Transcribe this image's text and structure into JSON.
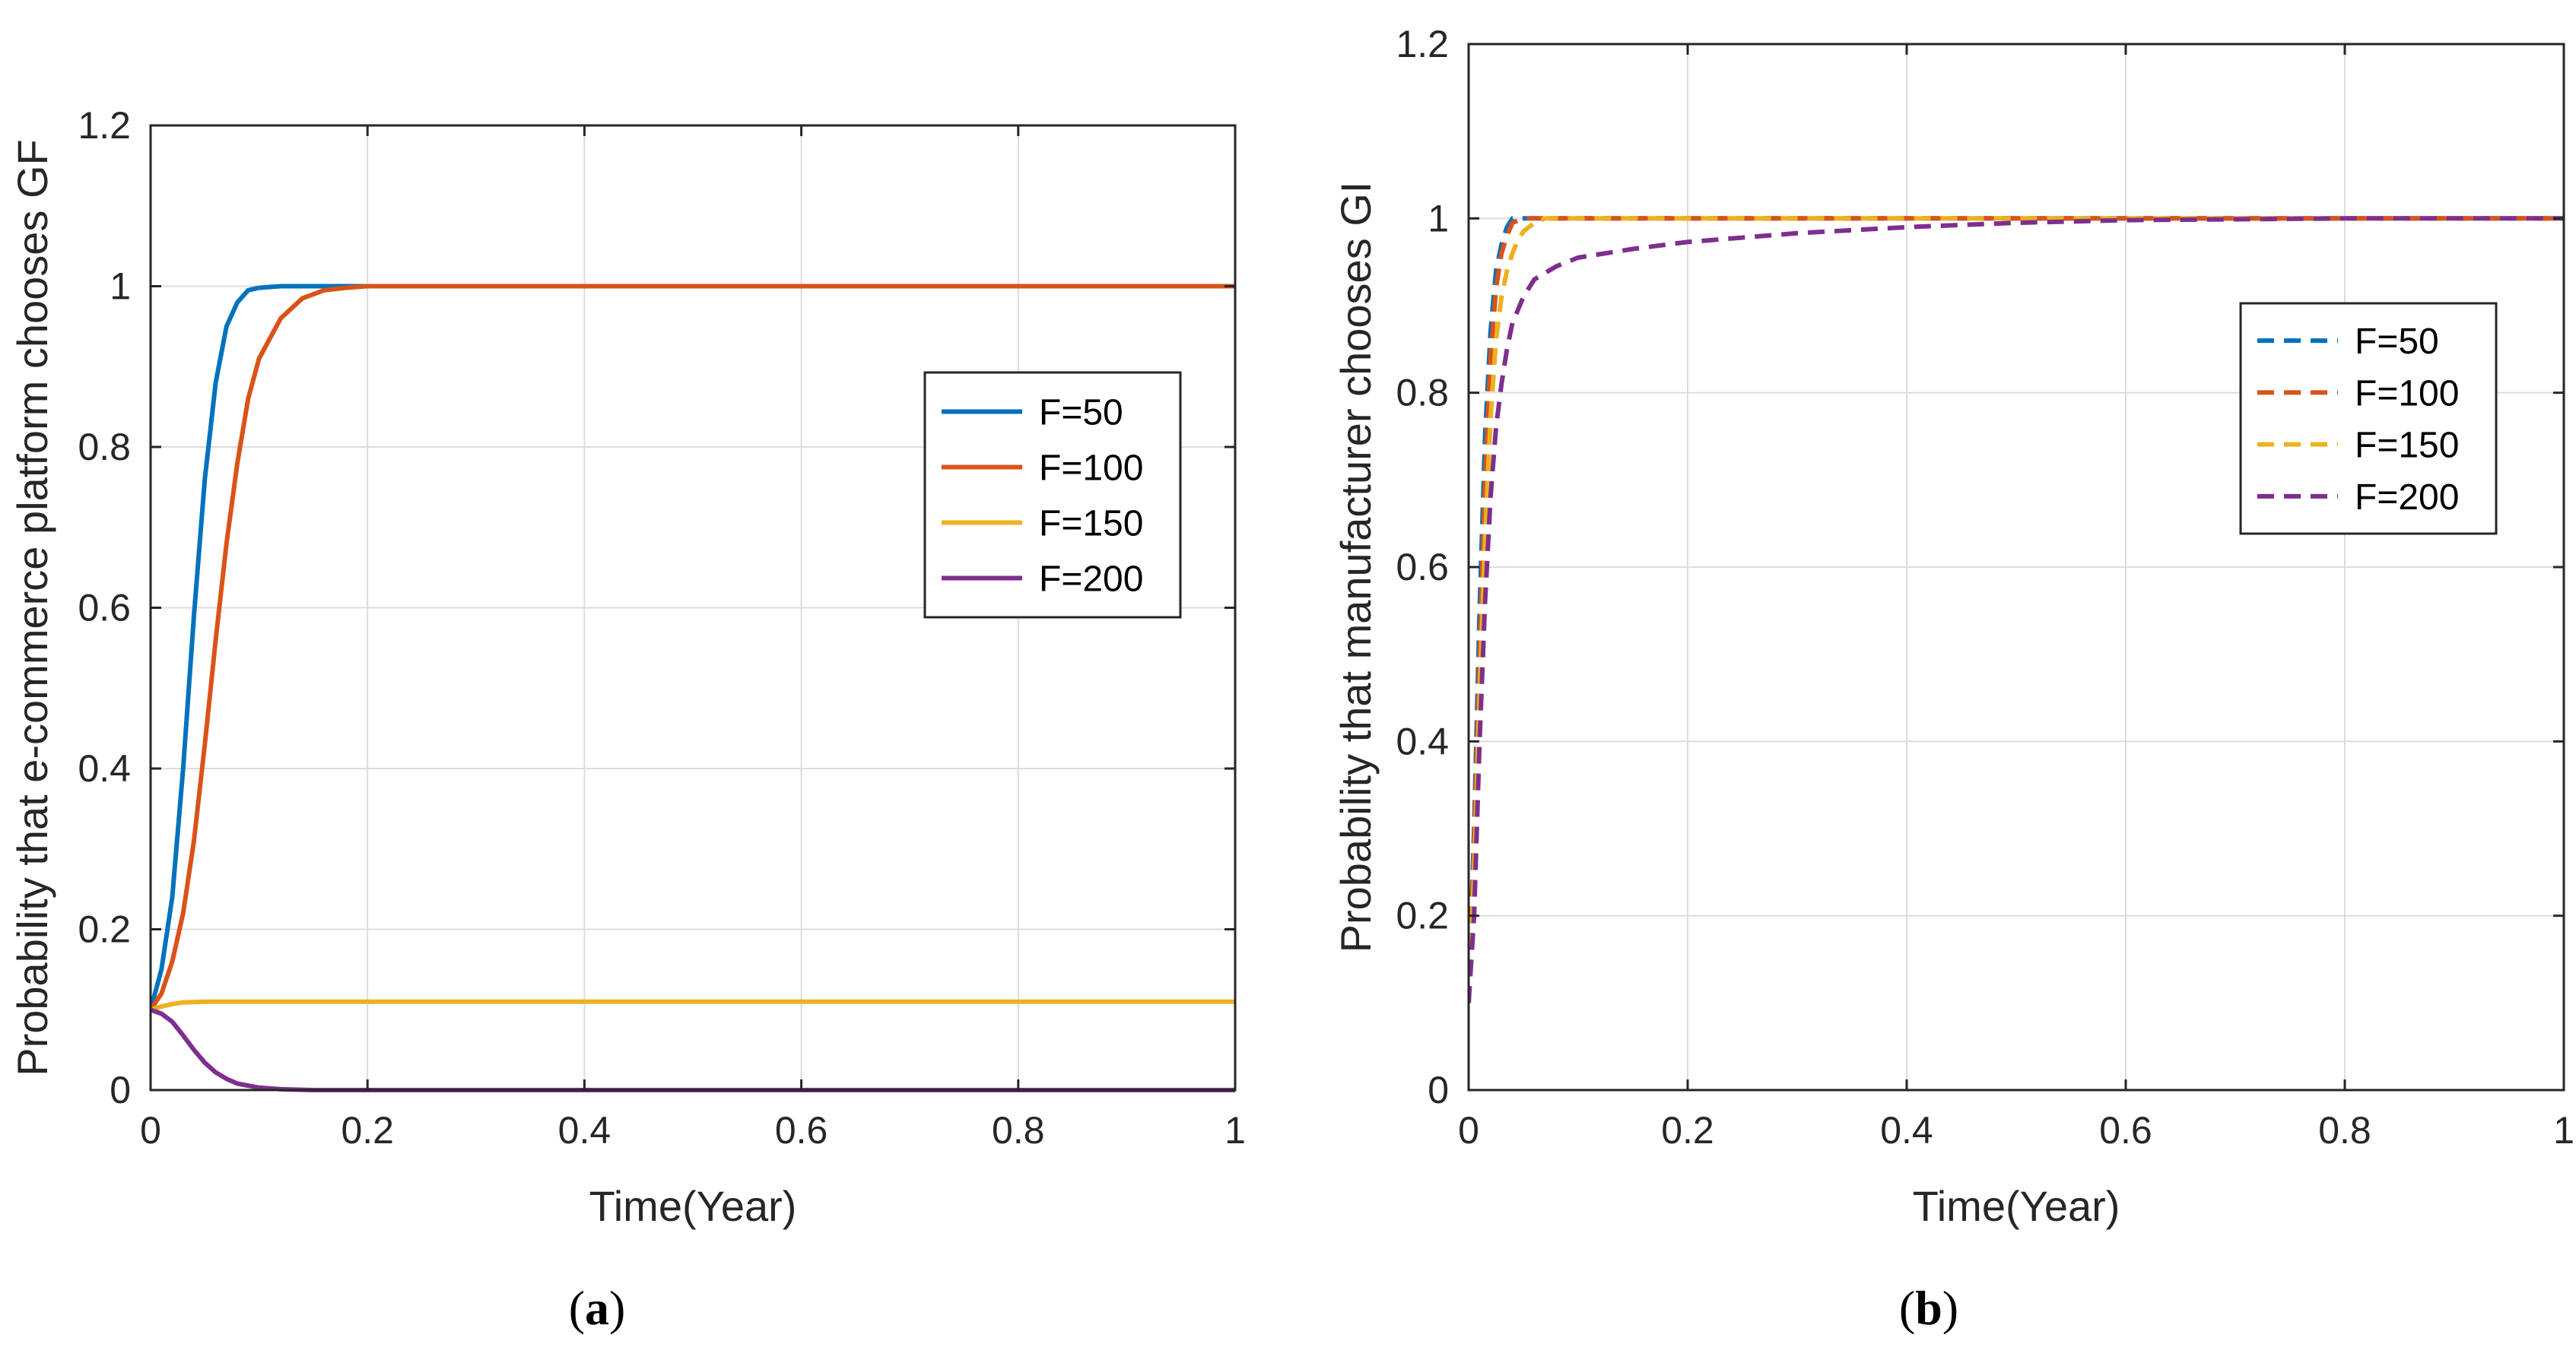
{
  "chart_data": [
    {
      "type": "line",
      "panel_label": "(a)",
      "title": "",
      "xlabel": "Time(Year)",
      "ylabel": "Probability that e-commerce platform chooses GF",
      "xlim": [
        0,
        1
      ],
      "ylim": [
        0,
        1.2
      ],
      "xticks": [
        0,
        0.2,
        0.4,
        0.6,
        0.8,
        1
      ],
      "xtick_labels": [
        "0",
        "0.2",
        "0.4",
        "0.6",
        "0.8",
        "1"
      ],
      "yticks": [
        0,
        0.2,
        0.4,
        0.6,
        0.8,
        1,
        1.2
      ],
      "ytick_labels": [
        "0",
        "0.2",
        "0.4",
        "0.6",
        "0.8",
        "1",
        "1.2"
      ],
      "grid": true,
      "legend_position": "center-right",
      "line_style": "solid",
      "series": [
        {
          "name": "F=50",
          "color": "#0072BD",
          "x": [
            0,
            0.01,
            0.02,
            0.03,
            0.04,
            0.05,
            0.06,
            0.07,
            0.08,
            0.09,
            0.1,
            0.12,
            0.15,
            0.2,
            1
          ],
          "y": [
            0.1,
            0.15,
            0.24,
            0.4,
            0.59,
            0.76,
            0.88,
            0.95,
            0.98,
            0.995,
            0.998,
            1,
            1,
            1,
            1
          ]
        },
        {
          "name": "F=100",
          "color": "#D95319",
          "x": [
            0,
            0.01,
            0.02,
            0.03,
            0.04,
            0.05,
            0.06,
            0.07,
            0.08,
            0.09,
            0.1,
            0.12,
            0.14,
            0.16,
            0.18,
            0.2,
            0.25,
            1
          ],
          "y": [
            0.1,
            0.12,
            0.16,
            0.22,
            0.31,
            0.43,
            0.56,
            0.68,
            0.78,
            0.86,
            0.91,
            0.96,
            0.985,
            0.995,
            0.998,
            1,
            1,
            1
          ]
        },
        {
          "name": "F=150",
          "color": "#EDB120",
          "x": [
            0,
            0.01,
            0.02,
            0.03,
            0.05,
            0.1,
            1
          ],
          "y": [
            0.1,
            0.104,
            0.107,
            0.109,
            0.11,
            0.11,
            0.11
          ]
        },
        {
          "name": "F=200",
          "color": "#7E2F8E",
          "x": [
            0,
            0.01,
            0.02,
            0.03,
            0.04,
            0.05,
            0.06,
            0.07,
            0.08,
            0.1,
            0.12,
            0.15,
            0.2,
            1
          ],
          "y": [
            0.1,
            0.095,
            0.085,
            0.068,
            0.05,
            0.034,
            0.022,
            0.014,
            0.008,
            0.003,
            0.001,
            0,
            0,
            0
          ]
        }
      ]
    },
    {
      "type": "line",
      "panel_label": "(b)",
      "title": "",
      "xlabel": "Time(Year)",
      "ylabel": "Probability that manufacturer chooses GI",
      "xlim": [
        0,
        1
      ],
      "ylim": [
        0,
        1.2
      ],
      "xticks": [
        0,
        0.2,
        0.4,
        0.6,
        0.8,
        1
      ],
      "xtick_labels": [
        "0",
        "0.2",
        "0.4",
        "0.6",
        "0.8",
        "1"
      ],
      "yticks": [
        0,
        0.2,
        0.4,
        0.6,
        0.8,
        1,
        1.2
      ],
      "ytick_labels": [
        "0",
        "0.2",
        "0.4",
        "0.6",
        "0.8",
        "1",
        "1.2"
      ],
      "grid": true,
      "legend_position": "upper-right",
      "line_style": "dashed",
      "series": [
        {
          "name": "F=50",
          "color": "#0072BD",
          "x": [
            0,
            0.005,
            0.01,
            0.015,
            0.02,
            0.025,
            0.03,
            0.035,
            0.04,
            0.05,
            1
          ],
          "y": [
            0.1,
            0.3,
            0.55,
            0.75,
            0.87,
            0.94,
            0.97,
            0.99,
            1,
            1,
            1
          ]
        },
        {
          "name": "F=100",
          "color": "#D95319",
          "x": [
            0,
            0.005,
            0.01,
            0.015,
            0.02,
            0.025,
            0.03,
            0.035,
            0.04,
            0.05,
            1
          ],
          "y": [
            0.1,
            0.28,
            0.5,
            0.7,
            0.84,
            0.92,
            0.96,
            0.98,
            0.995,
            1,
            1
          ]
        },
        {
          "name": "F=150",
          "color": "#EDB120",
          "x": [
            0,
            0.005,
            0.01,
            0.015,
            0.02,
            0.025,
            0.03,
            0.035,
            0.04,
            0.045,
            0.05,
            0.055,
            0.06,
            0.07,
            1
          ],
          "y": [
            0.1,
            0.25,
            0.45,
            0.63,
            0.77,
            0.86,
            0.91,
            0.94,
            0.96,
            0.975,
            0.985,
            0.99,
            0.995,
            1,
            1
          ]
        },
        {
          "name": "F=200",
          "color": "#7E2F8E",
          "x": [
            0,
            0.005,
            0.01,
            0.015,
            0.02,
            0.025,
            0.03,
            0.035,
            0.04,
            0.05,
            0.06,
            0.08,
            0.1,
            0.15,
            0.2,
            0.3,
            0.4,
            0.5,
            0.6,
            0.8,
            1
          ],
          "y": [
            0.1,
            0.2,
            0.4,
            0.56,
            0.68,
            0.76,
            0.81,
            0.85,
            0.88,
            0.91,
            0.93,
            0.945,
            0.955,
            0.965,
            0.973,
            0.983,
            0.99,
            0.995,
            0.998,
            1,
            1
          ]
        }
      ]
    }
  ]
}
